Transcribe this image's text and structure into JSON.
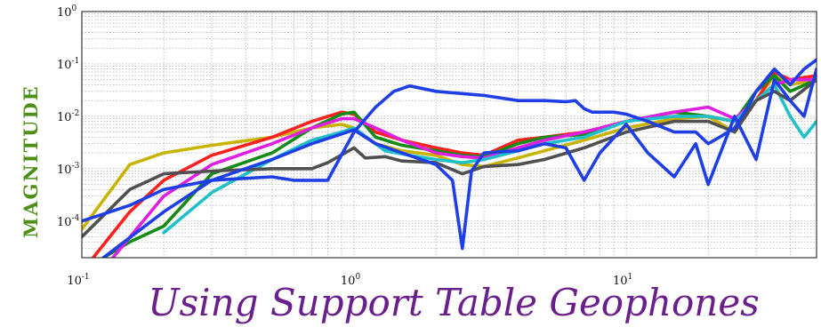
{
  "chart_data": {
    "type": "line",
    "title": "Using Support Table Geophones",
    "xlabel": "",
    "ylabel": "MAGNITUDE",
    "xscale": "log",
    "yscale": "log",
    "xlim": [
      0.1,
      50
    ],
    "ylim": [
      2e-05,
      1
    ],
    "grid": true,
    "x_ticks": [
      {
        "base": "10",
        "exp": "-1",
        "value": 0.1
      },
      {
        "base": "10",
        "exp": "0",
        "value": 1
      },
      {
        "base": "10",
        "exp": "1",
        "value": 10
      }
    ],
    "y_ticks": [
      {
        "base": "10",
        "exp": "0",
        "value": 1
      },
      {
        "base": "10",
        "exp": "-1",
        "value": 0.1
      },
      {
        "base": "10",
        "exp": "-2",
        "value": 0.01
      },
      {
        "base": "10",
        "exp": "-3",
        "value": 0.001
      },
      {
        "base": "10",
        "exp": "-4",
        "value": 0.0001
      }
    ],
    "series": [
      {
        "color": "#c8b400",
        "points": [
          [
            0.1,
            7e-05
          ],
          [
            0.15,
            0.0012
          ],
          [
            0.2,
            0.002
          ],
          [
            0.3,
            0.0028
          ],
          [
            0.5,
            0.004
          ],
          [
            0.7,
            0.006
          ],
          [
            0.9,
            0.007
          ],
          [
            1.0,
            0.006
          ],
          [
            1.2,
            0.003
          ],
          [
            1.5,
            0.0022
          ],
          [
            2.0,
            0.0018
          ],
          [
            2.5,
            0.0012
          ],
          [
            3.0,
            0.0011
          ],
          [
            4.0,
            0.0016
          ],
          [
            5.0,
            0.0022
          ],
          [
            7.0,
            0.0035
          ],
          [
            10.0,
            0.006
          ],
          [
            15.0,
            0.009
          ],
          [
            20.0,
            0.01
          ],
          [
            25.0,
            0.005
          ],
          [
            30.0,
            0.02
          ],
          [
            35.0,
            0.06
          ],
          [
            40.0,
            0.04
          ],
          [
            50.0,
            0.05
          ]
        ]
      },
      {
        "color": "#ff2020",
        "points": [
          [
            0.11,
            2e-05
          ],
          [
            0.15,
            0.00015
          ],
          [
            0.2,
            0.0006
          ],
          [
            0.3,
            0.0018
          ],
          [
            0.5,
            0.004
          ],
          [
            0.7,
            0.008
          ],
          [
            0.9,
            0.012
          ],
          [
            1.0,
            0.011
          ],
          [
            1.2,
            0.005
          ],
          [
            1.5,
            0.0035
          ],
          [
            2.0,
            0.0025
          ],
          [
            2.5,
            0.002
          ],
          [
            3.0,
            0.0018
          ],
          [
            4.0,
            0.0035
          ],
          [
            5.0,
            0.004
          ],
          [
            7.0,
            0.005
          ],
          [
            10.0,
            0.008
          ],
          [
            15.0,
            0.012
          ],
          [
            20.0,
            0.01
          ],
          [
            25.0,
            0.008
          ],
          [
            30.0,
            0.02
          ],
          [
            35.0,
            0.07
          ],
          [
            40.0,
            0.05
          ],
          [
            50.0,
            0.06
          ]
        ]
      },
      {
        "color": "#158a15",
        "points": [
          [
            0.12,
            2e-05
          ],
          [
            0.15,
            4e-05
          ],
          [
            0.2,
            8e-05
          ],
          [
            0.3,
            0.0008
          ],
          [
            0.5,
            0.002
          ],
          [
            0.7,
            0.006
          ],
          [
            0.9,
            0.011
          ],
          [
            1.0,
            0.012
          ],
          [
            1.2,
            0.004
          ],
          [
            1.5,
            0.0028
          ],
          [
            2.0,
            0.0022
          ],
          [
            2.5,
            0.0018
          ],
          [
            3.0,
            0.0017
          ],
          [
            4.0,
            0.003
          ],
          [
            5.0,
            0.004
          ],
          [
            7.0,
            0.0045
          ],
          [
            10.0,
            0.008
          ],
          [
            15.0,
            0.012
          ],
          [
            20.0,
            0.01
          ],
          [
            25.0,
            0.008
          ],
          [
            30.0,
            0.03
          ],
          [
            35.0,
            0.06
          ],
          [
            40.0,
            0.03
          ],
          [
            50.0,
            0.05
          ]
        ]
      },
      {
        "color": "#e020e0",
        "points": [
          [
            0.13,
            2e-05
          ],
          [
            0.2,
            0.0003
          ],
          [
            0.3,
            0.0012
          ],
          [
            0.5,
            0.003
          ],
          [
            0.7,
            0.006
          ],
          [
            0.9,
            0.009
          ],
          [
            1.0,
            0.009
          ],
          [
            1.2,
            0.006
          ],
          [
            1.5,
            0.0035
          ],
          [
            2.0,
            0.002
          ],
          [
            2.5,
            0.0017
          ],
          [
            3.0,
            0.0016
          ],
          [
            4.0,
            0.0025
          ],
          [
            5.0,
            0.0035
          ],
          [
            7.0,
            0.005
          ],
          [
            10.0,
            0.008
          ],
          [
            15.0,
            0.012
          ],
          [
            20.0,
            0.015
          ],
          [
            25.0,
            0.009
          ],
          [
            30.0,
            0.02
          ],
          [
            35.0,
            0.04
          ],
          [
            40.0,
            0.05
          ],
          [
            50.0,
            0.05
          ]
        ]
      },
      {
        "color": "#1fc0c8",
        "points": [
          [
            0.2,
            6e-05
          ],
          [
            0.3,
            0.00035
          ],
          [
            0.5,
            0.0015
          ],
          [
            0.7,
            0.0035
          ],
          [
            0.9,
            0.005
          ],
          [
            1.0,
            0.006
          ],
          [
            1.3,
            0.0022
          ],
          [
            1.6,
            0.0018
          ],
          [
            2.0,
            0.0015
          ],
          [
            2.5,
            0.0013
          ],
          [
            3.0,
            0.0015
          ],
          [
            4.0,
            0.0022
          ],
          [
            5.0,
            0.003
          ],
          [
            7.0,
            0.004
          ],
          [
            10.0,
            0.008
          ],
          [
            15.0,
            0.01
          ],
          [
            20.0,
            0.01
          ],
          [
            25.0,
            0.008
          ],
          [
            30.0,
            0.02
          ],
          [
            35.0,
            0.04
          ],
          [
            40.0,
            0.01
          ],
          [
            45.0,
            0.004
          ],
          [
            50.0,
            0.008
          ]
        ]
      },
      {
        "color": "#505050",
        "points": [
          [
            0.1,
            5e-05
          ],
          [
            0.15,
            0.0004
          ],
          [
            0.2,
            0.0008
          ],
          [
            0.3,
            0.0009
          ],
          [
            0.5,
            0.001
          ],
          [
            0.7,
            0.001
          ],
          [
            0.8,
            0.0013
          ],
          [
            1.0,
            0.0025
          ],
          [
            1.1,
            0.0016
          ],
          [
            1.3,
            0.0017
          ],
          [
            1.5,
            0.0014
          ],
          [
            2.0,
            0.0013
          ],
          [
            2.5,
            0.0008
          ],
          [
            3.0,
            0.0011
          ],
          [
            4.0,
            0.0012
          ],
          [
            5.0,
            0.0015
          ],
          [
            7.0,
            0.0025
          ],
          [
            10.0,
            0.005
          ],
          [
            15.0,
            0.008
          ],
          [
            20.0,
            0.008
          ],
          [
            25.0,
            0.005
          ],
          [
            30.0,
            0.02
          ],
          [
            35.0,
            0.03
          ],
          [
            40.0,
            0.02
          ],
          [
            50.0,
            0.05
          ]
        ]
      },
      {
        "color": "#1f3fe6",
        "points": [
          [
            0.1,
            0.0001
          ],
          [
            0.15,
            0.0002
          ],
          [
            0.2,
            0.0004
          ],
          [
            0.3,
            0.0006
          ],
          [
            0.5,
            0.0007
          ],
          [
            0.6,
            0.0006
          ],
          [
            0.8,
            0.0006
          ],
          [
            1.0,
            0.005
          ],
          [
            1.2,
            0.015
          ],
          [
            1.4,
            0.03
          ],
          [
            1.6,
            0.038
          ],
          [
            2.0,
            0.03
          ],
          [
            3.0,
            0.025
          ],
          [
            4.0,
            0.02
          ],
          [
            5.0,
            0.02
          ],
          [
            6.0,
            0.019
          ],
          [
            6.5,
            0.02
          ],
          [
            7.0,
            0.014
          ],
          [
            7.5,
            0.012
          ],
          [
            8.0,
            0.012
          ],
          [
            9.0,
            0.012
          ],
          [
            10.0,
            0.011
          ],
          [
            12.0,
            0.008
          ],
          [
            15.0,
            0.005
          ],
          [
            18.0,
            0.005
          ],
          [
            20.0,
            0.003
          ],
          [
            22.0,
            0.004
          ],
          [
            25.0,
            0.006
          ],
          [
            28.0,
            0.015
          ],
          [
            30.0,
            0.03
          ],
          [
            35.0,
            0.08
          ],
          [
            40.0,
            0.04
          ],
          [
            45.0,
            0.08
          ],
          [
            50.0,
            0.12
          ]
        ]
      },
      {
        "color": "#1f3fe6",
        "points": [
          [
            0.12,
            2e-05
          ],
          [
            0.2,
            0.00015
          ],
          [
            0.3,
            0.0006
          ],
          [
            0.5,
            0.0015
          ],
          [
            0.7,
            0.003
          ],
          [
            1.0,
            0.0055
          ],
          [
            1.2,
            0.003
          ],
          [
            1.5,
            0.002
          ],
          [
            2.0,
            0.0012
          ],
          [
            2.3,
            0.0006
          ],
          [
            2.5,
            3e-05
          ],
          [
            2.7,
            0.0009
          ],
          [
            3.0,
            0.002
          ],
          [
            4.0,
            0.0022
          ],
          [
            5.0,
            0.003
          ],
          [
            6.0,
            0.0025
          ],
          [
            7.0,
            0.0006
          ],
          [
            8.0,
            0.002
          ],
          [
            10.0,
            0.007
          ],
          [
            12.0,
            0.002
          ],
          [
            15.0,
            0.0007
          ],
          [
            18.0,
            0.003
          ],
          [
            20.0,
            0.0005
          ],
          [
            25.0,
            0.01
          ],
          [
            30.0,
            0.0015
          ],
          [
            35.0,
            0.05
          ],
          [
            40.0,
            0.02
          ],
          [
            45.0,
            0.01
          ],
          [
            50.0,
            0.08
          ]
        ]
      }
    ]
  }
}
